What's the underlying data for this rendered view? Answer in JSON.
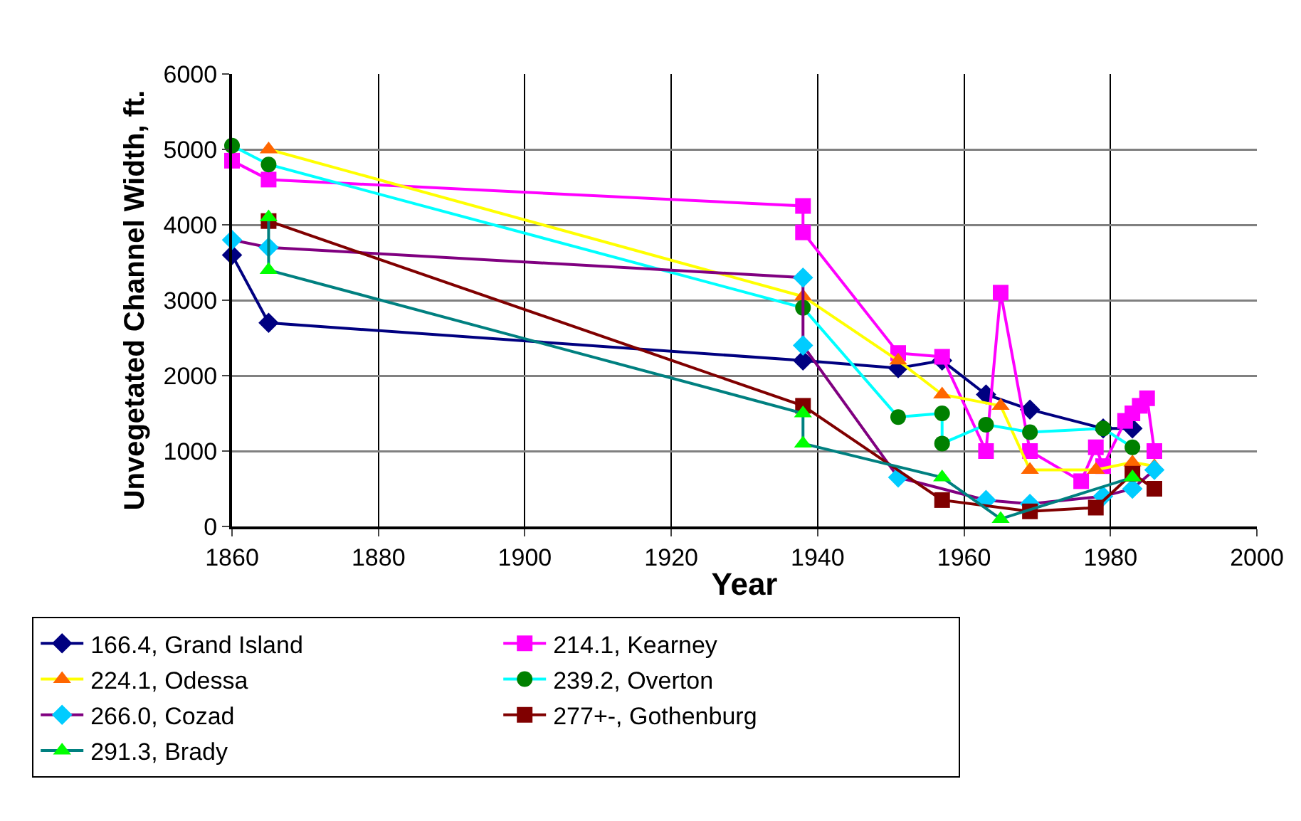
{
  "chart_data": {
    "type": "line",
    "xlabel": "Year",
    "ylabel": "Unvegetated Channel Width, ft.",
    "xlim": [
      1860,
      2000
    ],
    "xticks": [
      1860,
      1880,
      1900,
      1920,
      1940,
      1960,
      1980,
      2000
    ],
    "ylim": [
      0,
      6000
    ],
    "yticks": [
      0,
      1000,
      2000,
      3000,
      4000,
      5000,
      6000
    ],
    "grid": true,
    "legend": "bottom",
    "series": [
      {
        "name": "166.4, Grand Island",
        "color": "#000080",
        "marker": "diamond",
        "colors": [
          "#000080",
          "#000080",
          "#000080",
          "#000080",
          "#000080",
          "#000080",
          "#000080",
          "#000080",
          "#000080"
        ],
        "x": [
          1860,
          1865,
          1938,
          1951,
          1957,
          1963,
          1969,
          1979,
          1983
        ],
        "values": [
          3600,
          2700,
          2200,
          2100,
          2200,
          1750,
          1550,
          1300,
          1300
        ]
      },
      {
        "name": "214.1, Kearney",
        "color": "#ff00ff",
        "marker": "square",
        "colors": [
          "#ff00ff",
          "#ff00ff",
          "#ff00ff",
          "#ff00ff",
          "#ff00ff",
          "#ff00ff",
          "#ff00ff",
          "#ff00ff",
          "#ff00ff",
          "#ff00ff",
          "#ff00ff",
          "#ff00ff",
          "#ff00ff",
          "#ff00ff",
          "#ff00ff",
          "#ff00ff",
          "#ff00ff"
        ],
        "x": [
          1860,
          1865,
          1938,
          1938,
          1951,
          1957,
          1963,
          1965,
          1969,
          1976,
          1978,
          1979,
          1982,
          1983,
          1984,
          1985,
          1986
        ],
        "values": [
          4850,
          4600,
          4250,
          3900,
          2300,
          2250,
          1000,
          3100,
          1000,
          600,
          1050,
          800,
          1400,
          1500,
          1600,
          1700,
          1000
        ]
      },
      {
        "name": "224.1, Odessa",
        "color": "#ffff00",
        "marker": "triangle",
        "colors": [
          "#ff6600",
          "#ff6600",
          "#ff6600",
          "#ff6600",
          "#ff6600",
          "#ff6600",
          "#ff6600",
          "#ff6600",
          "#ff6600"
        ],
        "x": [
          1865,
          1938,
          1951,
          1957,
          1965,
          1969,
          1978,
          1983,
          1986
        ],
        "values": [
          5000,
          3050,
          2200,
          1750,
          1600,
          750,
          750,
          850,
          800
        ]
      },
      {
        "name": "239.2, Overton",
        "color": "#00ffff",
        "marker": "circle",
        "colors": [
          "#008000",
          "#008000",
          "#008000",
          "#008000",
          "#008000",
          "#008000",
          "#008000",
          "#008000",
          "#008000",
          "#008000"
        ],
        "x": [
          1860,
          1865,
          1938,
          1951,
          1957,
          1957,
          1963,
          1969,
          1979,
          1983
        ],
        "values": [
          5050,
          4800,
          2900,
          1450,
          1500,
          1100,
          1350,
          1250,
          1300,
          1050
        ]
      },
      {
        "name": "266.0, Cozad",
        "color": "#800080",
        "marker": "diamond",
        "colors": [
          "#00ccff",
          "#00ccff",
          "#00ccff",
          "#00ccff",
          "#00ccff",
          "#00ccff",
          "#00ccff",
          "#00ccff",
          "#00ccff",
          "#00ccff"
        ],
        "x": [
          1860,
          1865,
          1938,
          1938,
          1951,
          1963,
          1969,
          1979,
          1983,
          1986
        ],
        "values": [
          3800,
          3700,
          3300,
          2400,
          650,
          350,
          300,
          400,
          500,
          750
        ]
      },
      {
        "name": "277+-, Gothenburg",
        "color": "#800000",
        "marker": "square",
        "colors": [
          "#800000",
          "#800000",
          "#800000",
          "#800000",
          "#800000",
          "#800000",
          "#800000"
        ],
        "x": [
          1865,
          1938,
          1957,
          1969,
          1978,
          1983,
          1986
        ],
        "values": [
          4050,
          1600,
          350,
          200,
          250,
          700,
          500
        ]
      },
      {
        "name": "291.3, Brady",
        "color": "#008080",
        "marker": "triangle",
        "colors": [
          "#00ff00",
          "#00ff00",
          "#00ff00",
          "#00ff00",
          "#00ff00",
          "#00ff00",
          "#00ff00"
        ],
        "x": [
          1865,
          1865,
          1938,
          1938,
          1957,
          1965,
          1983
        ],
        "values": [
          4100,
          3400,
          1500,
          1100,
          650,
          100,
          650
        ]
      }
    ]
  }
}
